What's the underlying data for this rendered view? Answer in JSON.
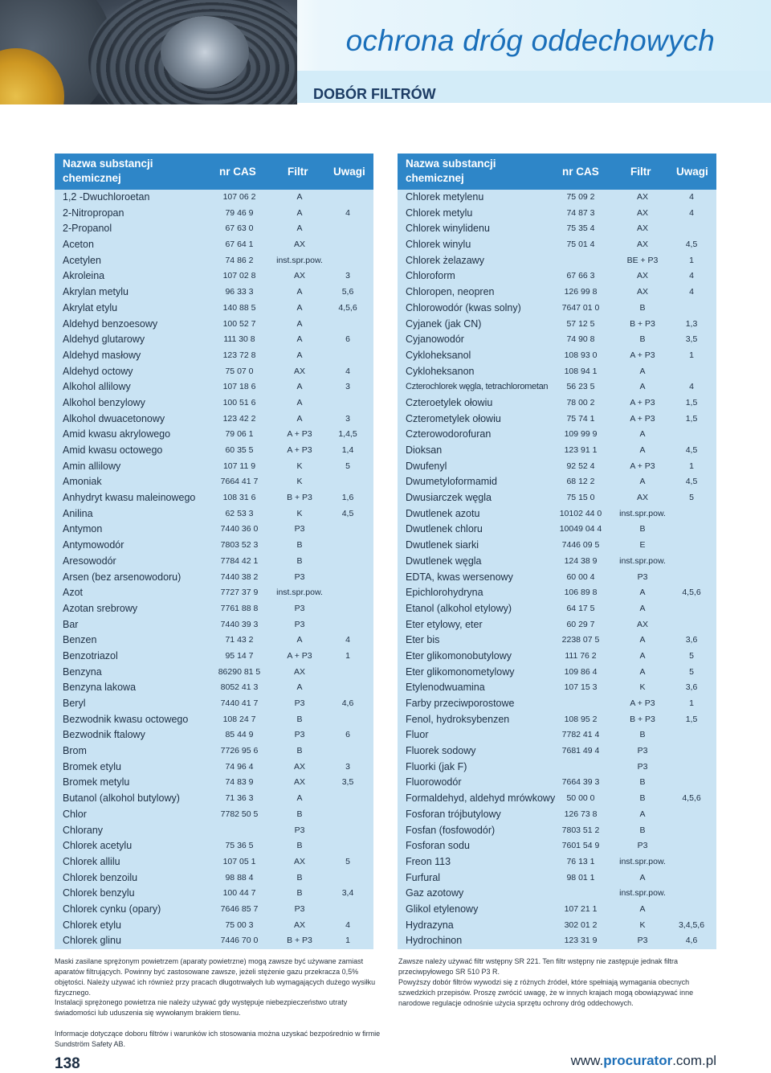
{
  "header": {
    "page_title": "ochrona dróg oddechowych",
    "section_title": "DOBÓR FILTRÓW"
  },
  "table_left": {
    "col_name": "Nazwa substancji chemicznej",
    "col_cas": "nr CAS",
    "col_filter": "Filtr",
    "col_notes": "Uwagi",
    "rows": [
      {
        "name": "1,2 -Dwuchloroetan",
        "cas": "107 06 2",
        "filter": "A",
        "notes": ""
      },
      {
        "name": "2-Nitropropan",
        "cas": "79 46 9",
        "filter": "A",
        "notes": "4"
      },
      {
        "name": "2-Propanol",
        "cas": "67 63 0",
        "filter": "A",
        "notes": ""
      },
      {
        "name": "Aceton",
        "cas": "67 64 1",
        "filter": "AX",
        "notes": ""
      },
      {
        "name": "Acetylen",
        "cas": "74 86 2",
        "filter": "inst.spr.pow.",
        "notes": ""
      },
      {
        "name": "Akroleina",
        "cas": "107 02 8",
        "filter": "AX",
        "notes": "3"
      },
      {
        "name": "Akrylan metylu",
        "cas": "96 33 3",
        "filter": "A",
        "notes": "5,6"
      },
      {
        "name": "Akrylat etylu",
        "cas": "140 88 5",
        "filter": "A",
        "notes": "4,5,6"
      },
      {
        "name": "Aldehyd benzoesowy",
        "cas": "100 52 7",
        "filter": "A",
        "notes": ""
      },
      {
        "name": "Aldehyd glutarowy",
        "cas": "111 30 8",
        "filter": "A",
        "notes": "6"
      },
      {
        "name": "Aldehyd masłowy",
        "cas": "123 72 8",
        "filter": "A",
        "notes": ""
      },
      {
        "name": "Aldehyd octowy",
        "cas": "75 07 0",
        "filter": "AX",
        "notes": "4"
      },
      {
        "name": "Alkohol allilowy",
        "cas": "107 18 6",
        "filter": "A",
        "notes": "3"
      },
      {
        "name": "Alkohol benzylowy",
        "cas": "100 51 6",
        "filter": "A",
        "notes": ""
      },
      {
        "name": "Alkohol dwuacetonowy",
        "cas": "123 42 2",
        "filter": "A",
        "notes": "3"
      },
      {
        "name": "Amid kwasu akrylowego",
        "cas": "79 06 1",
        "filter": "A + P3",
        "notes": "1,4,5"
      },
      {
        "name": "Amid kwasu octowego",
        "cas": "60 35 5",
        "filter": "A + P3",
        "notes": "1,4"
      },
      {
        "name": "Amin allilowy",
        "cas": "107 11 9",
        "filter": "K",
        "notes": "5"
      },
      {
        "name": "Amoniak",
        "cas": "7664 41 7",
        "filter": "K",
        "notes": ""
      },
      {
        "name": "Anhydryt kwasu maleinowego",
        "cas": "108 31 6",
        "filter": "B + P3",
        "notes": "1,6"
      },
      {
        "name": "Anilina",
        "cas": "62 53 3",
        "filter": "K",
        "notes": "4,5"
      },
      {
        "name": "Antymon",
        "cas": "7440 36 0",
        "filter": "P3",
        "notes": ""
      },
      {
        "name": "Antymowodór",
        "cas": "7803 52 3",
        "filter": "B",
        "notes": ""
      },
      {
        "name": "Aresowodór",
        "cas": "7784 42 1",
        "filter": "B",
        "notes": ""
      },
      {
        "name": "Arsen (bez arsenowodoru)",
        "cas": "7440 38 2",
        "filter": "P3",
        "notes": ""
      },
      {
        "name": "Azot",
        "cas": "7727 37 9",
        "filter": "inst.spr.pow.",
        "notes": ""
      },
      {
        "name": "Azotan srebrowy",
        "cas": "7761 88 8",
        "filter": "P3",
        "notes": ""
      },
      {
        "name": "Bar",
        "cas": "7440 39 3",
        "filter": "P3",
        "notes": ""
      },
      {
        "name": "Benzen",
        "cas": "71 43 2",
        "filter": "A",
        "notes": "4"
      },
      {
        "name": "Benzotriazol",
        "cas": "95 14 7",
        "filter": "A + P3",
        "notes": "1"
      },
      {
        "name": "Benzyna",
        "cas": "86290 81 5",
        "filter": "AX",
        "notes": ""
      },
      {
        "name": "Benzyna lakowa",
        "cas": "8052 41 3",
        "filter": "A",
        "notes": ""
      },
      {
        "name": "Beryl",
        "cas": "7440 41 7",
        "filter": "P3",
        "notes": "4,6"
      },
      {
        "name": "Bezwodnik kwasu octowego",
        "cas": "108 24 7",
        "filter": "B",
        "notes": ""
      },
      {
        "name": "Bezwodnik ftalowy",
        "cas": "85 44 9",
        "filter": "P3",
        "notes": "6"
      },
      {
        "name": "Brom",
        "cas": "7726 95 6",
        "filter": "B",
        "notes": ""
      },
      {
        "name": "Bromek etylu",
        "cas": "74 96 4",
        "filter": "AX",
        "notes": "3"
      },
      {
        "name": "Bromek metylu",
        "cas": "74 83 9",
        "filter": "AX",
        "notes": "3,5"
      },
      {
        "name": "Butanol (alkohol butylowy)",
        "cas": "71 36 3",
        "filter": "A",
        "notes": ""
      },
      {
        "name": "Chlor",
        "cas": "7782 50 5",
        "filter": "B",
        "notes": ""
      },
      {
        "name": "Chlorany",
        "cas": "",
        "filter": "P3",
        "notes": ""
      },
      {
        "name": "Chlorek acetylu",
        "cas": "75 36 5",
        "filter": "B",
        "notes": ""
      },
      {
        "name": "Chlorek allilu",
        "cas": "107 05 1",
        "filter": "AX",
        "notes": "5"
      },
      {
        "name": "Chlorek benzoilu",
        "cas": "98 88 4",
        "filter": "B",
        "notes": ""
      },
      {
        "name": "Chlorek benzylu",
        "cas": "100 44 7",
        "filter": "B",
        "notes": "3,4"
      },
      {
        "name": "Chlorek cynku (opary)",
        "cas": "7646 85 7",
        "filter": "P3",
        "notes": ""
      },
      {
        "name": "Chlorek etylu",
        "cas": "75 00 3",
        "filter": "AX",
        "notes": "4"
      },
      {
        "name": "Chlorek glinu",
        "cas": "7446 70 0",
        "filter": "B + P3",
        "notes": "1"
      }
    ]
  },
  "table_right": {
    "col_name": "Nazwa substancji chemicznej",
    "col_cas": "nr CAS",
    "col_filter": "Filtr",
    "col_notes": "Uwagi",
    "rows": [
      {
        "name": "Chlorek metylenu",
        "cas": "75 09 2",
        "filter": "AX",
        "notes": "4"
      },
      {
        "name": "Chlorek metylu",
        "cas": "74 87 3",
        "filter": "AX",
        "notes": "4"
      },
      {
        "name": "Chlorek winylidenu",
        "cas": "75 35 4",
        "filter": "AX",
        "notes": ""
      },
      {
        "name": "Chlorek winylu",
        "cas": "75 01 4",
        "filter": "AX",
        "notes": "4,5"
      },
      {
        "name": "Chlorek żelazawy",
        "cas": "",
        "filter": "BE + P3",
        "notes": "1"
      },
      {
        "name": "Chloroform",
        "cas": "67 66 3",
        "filter": "AX",
        "notes": "4"
      },
      {
        "name": "Chloropen, neopren",
        "cas": "126 99 8",
        "filter": "AX",
        "notes": "4"
      },
      {
        "name": "Chlorowodór (kwas solny)",
        "cas": "7647 01 0",
        "filter": "B",
        "notes": ""
      },
      {
        "name": "Cyjanek (jak CN)",
        "cas": "57 12 5",
        "filter": "B + P3",
        "notes": "1,3"
      },
      {
        "name": "Cyjanowodór",
        "cas": "74 90 8",
        "filter": "B",
        "notes": "3,5"
      },
      {
        "name": "Cykloheksanol",
        "cas": "108 93 0",
        "filter": "A + P3",
        "notes": "1"
      },
      {
        "name": "Cykloheksanon",
        "cas": "108 94 1",
        "filter": "A",
        "notes": ""
      },
      {
        "name": "Czterochlorek węgla, tetrachlorometan",
        "cas": "56 23 5",
        "filter": "A",
        "notes": "4"
      },
      {
        "name": "Czteroetylek ołowiu",
        "cas": "78 00 2",
        "filter": "A + P3",
        "notes": "1,5"
      },
      {
        "name": "Czterometylek ołowiu",
        "cas": "75 74 1",
        "filter": "A + P3",
        "notes": "1,5"
      },
      {
        "name": "Czterowodorofuran",
        "cas": "109 99 9",
        "filter": "A",
        "notes": ""
      },
      {
        "name": "Dioksan",
        "cas": "123 91 1",
        "filter": "A",
        "notes": "4,5"
      },
      {
        "name": "Dwufenyl",
        "cas": "92 52 4",
        "filter": "A + P3",
        "notes": "1"
      },
      {
        "name": "Dwumetyloformamid",
        "cas": "68 12 2",
        "filter": "A",
        "notes": "4,5"
      },
      {
        "name": "Dwusiarczek węgla",
        "cas": "75 15 0",
        "filter": "AX",
        "notes": "5"
      },
      {
        "name": "Dwutlenek azotu",
        "cas": "10102 44 0",
        "filter": "inst.spr.pow.",
        "notes": ""
      },
      {
        "name": "Dwutlenek chloru",
        "cas": "10049 04 4",
        "filter": "B",
        "notes": ""
      },
      {
        "name": "Dwutlenek siarki",
        "cas": "7446 09 5",
        "filter": "E",
        "notes": ""
      },
      {
        "name": "Dwutlenek węgla",
        "cas": "124 38 9",
        "filter": "inst.spr.pow.",
        "notes": ""
      },
      {
        "name": "EDTA, kwas wersenowy",
        "cas": "60 00 4",
        "filter": "P3",
        "notes": ""
      },
      {
        "name": "Epichlorohydryna",
        "cas": "106 89 8",
        "filter": "A",
        "notes": "4,5,6"
      },
      {
        "name": "Etanol (alkohol etylowy)",
        "cas": "64 17 5",
        "filter": "A",
        "notes": ""
      },
      {
        "name": "Eter etylowy, eter",
        "cas": "60 29 7",
        "filter": "AX",
        "notes": ""
      },
      {
        "name": "Eter bis",
        "cas": "2238 07 5",
        "filter": "A",
        "notes": "3,6"
      },
      {
        "name": "Eter glikomonobutylowy",
        "cas": "111 76 2",
        "filter": "A",
        "notes": "5"
      },
      {
        "name": "Eter glikomonometylowy",
        "cas": "109 86 4",
        "filter": "A",
        "notes": "5"
      },
      {
        "name": "Etylenodwuamina",
        "cas": "107 15 3",
        "filter": "K",
        "notes": "3,6"
      },
      {
        "name": "Farby przeciwporostowe",
        "cas": "",
        "filter": "A + P3",
        "notes": "1"
      },
      {
        "name": "Fenol, hydroksybenzen",
        "cas": "108 95 2",
        "filter": "B + P3",
        "notes": "1,5"
      },
      {
        "name": "Fluor",
        "cas": "7782 41 4",
        "filter": "B",
        "notes": ""
      },
      {
        "name": "Fluorek sodowy",
        "cas": "7681 49 4",
        "filter": "P3",
        "notes": ""
      },
      {
        "name": "Fluorki (jak F)",
        "cas": "",
        "filter": "P3",
        "notes": ""
      },
      {
        "name": "Fluorowodór",
        "cas": "7664 39 3",
        "filter": "B",
        "notes": ""
      },
      {
        "name": "Formaldehyd, aldehyd mrówkowy",
        "cas": "50 00 0",
        "filter": "B",
        "notes": "4,5,6"
      },
      {
        "name": "Fosforan trójbutylowy",
        "cas": "126 73 8",
        "filter": "A",
        "notes": ""
      },
      {
        "name": "Fosfan (fosfowodór)",
        "cas": "7803 51 2",
        "filter": "B",
        "notes": ""
      },
      {
        "name": "Fosforan sodu",
        "cas": "7601 54 9",
        "filter": "P3",
        "notes": ""
      },
      {
        "name": "Freon 113",
        "cas": "76 13 1",
        "filter": "inst.spr.pow.",
        "notes": ""
      },
      {
        "name": "Furfural",
        "cas": "98 01 1",
        "filter": "A",
        "notes": ""
      },
      {
        "name": "Gaz azotowy",
        "cas": "",
        "filter": "inst.spr.pow.",
        "notes": ""
      },
      {
        "name": "Glikol etylenowy",
        "cas": "107 21 1",
        "filter": "A",
        "notes": ""
      },
      {
        "name": "Hydrazyna",
        "cas": "302 01 2",
        "filter": "K",
        "notes": "3,4,5,6"
      },
      {
        "name": "Hydrochinon",
        "cas": "123 31 9",
        "filter": "P3",
        "notes": "4,6"
      }
    ]
  },
  "notes": {
    "left1": "Maski zasilane sprężonym powietrzem (aparaty powietrzne) mogą zawsze być używane zamiast aparatów filtrujących. Powinny być zastosowane zawsze, jeżeli stężenie gazu przekracza 0,5% objętości. Należy używać ich również przy pracach długotrwałych lub wymagających dużego wysiłku fizycznego.",
    "left2": "Instalacji sprężonego powietrza nie należy używać gdy występuje niebezpieczeństwo utraty świadomości lub uduszenia się wywołanym brakiem tlenu.",
    "left3": "Informacje dotyczące doboru filtrów i warunków ich stosowania można uzyskać bezpośrednio w firmie Sundström Safety AB.",
    "right1": "Zawsze należy używać filtr wstępny SR 221. Ten filtr wstępny nie zastępuje jednak filtra przeciwpyłowego SR 510 P3 R.",
    "right2": "Powyższy dobór filtrów wywodzi się z różnych źródeł, które spełniają wymagania obecnych szwedzkich przepisów. Proszę zwrócić uwagę, że w innych krajach mogą obowiązywać inne narodowe regulacje odnośnie użycia sprzętu ochrony dróg oddechowych."
  },
  "footer": {
    "page_number": "138",
    "site_prefix": "www.",
    "site_accent": "procurator",
    "site_suffix": ".com.pl"
  }
}
